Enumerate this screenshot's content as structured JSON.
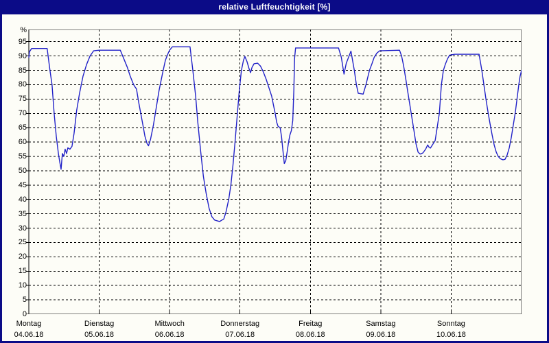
{
  "window": {
    "title": "relative Luftfeuchtigkeit [%]"
  },
  "colors": {
    "titlebar": "#0b0b87",
    "window_border": "#0b0b87",
    "background": "#fdfdf7",
    "grid": "#000000",
    "axis": "#000000",
    "text": "#000000",
    "line": "#2121c8"
  },
  "chart_data": {
    "type": "line",
    "title": "relative Luftfeuchtigkeit [%]",
    "xlabel": "",
    "ylabel": "%",
    "ylim": [
      0,
      99
    ],
    "y_tick_step": 5,
    "y_ticks": [
      95,
      90,
      85,
      80,
      75,
      70,
      65,
      60,
      55,
      50,
      45,
      40,
      35,
      30,
      25,
      20,
      15,
      10,
      5,
      0
    ],
    "y_unit_label": "%",
    "grid": "dashed",
    "legend": "none",
    "x_days": [
      {
        "label": "Montag",
        "date": "04.06.18"
      },
      {
        "label": "Dienstag",
        "date": "05.06.18"
      },
      {
        "label": "Mittwoch",
        "date": "06.06.18"
      },
      {
        "label": "Donnerstag",
        "date": "07.06.18"
      },
      {
        "label": "Freitag",
        "date": "08.06.18"
      },
      {
        "label": "Samstag",
        "date": "09.06.18"
      },
      {
        "label": "Sonntag",
        "date": "10.06.18"
      }
    ],
    "series": [
      {
        "name": "relative Luftfeuchtigkeit",
        "unit": "%",
        "points": [
          [
            0.0,
            89.5
          ],
          [
            0.01,
            91.5
          ],
          [
            0.04,
            92.6
          ],
          [
            0.26,
            92.6
          ],
          [
            0.3,
            85
          ],
          [
            0.33,
            80
          ],
          [
            0.36,
            70
          ],
          [
            0.39,
            62
          ],
          [
            0.42,
            56
          ],
          [
            0.44,
            53
          ],
          [
            0.458,
            50.5
          ],
          [
            0.477,
            56
          ],
          [
            0.497,
            55
          ],
          [
            0.516,
            57.5
          ],
          [
            0.536,
            56
          ],
          [
            0.555,
            58
          ],
          [
            0.584,
            57.5
          ],
          [
            0.613,
            58.5
          ],
          [
            0.642,
            63
          ],
          [
            0.68,
            71
          ],
          [
            0.72,
            77
          ],
          [
            0.77,
            83
          ],
          [
            0.82,
            87
          ],
          [
            0.87,
            90
          ],
          [
            0.92,
            91.8
          ],
          [
            1.0,
            92.0
          ],
          [
            1.3,
            92.0
          ],
          [
            1.35,
            89
          ],
          [
            1.4,
            86
          ],
          [
            1.44,
            83
          ],
          [
            1.48,
            80.5
          ],
          [
            1.5,
            79.5
          ],
          [
            1.53,
            78.5
          ],
          [
            1.56,
            74
          ],
          [
            1.59,
            70
          ],
          [
            1.62,
            66
          ],
          [
            1.65,
            62
          ],
          [
            1.68,
            59.5
          ],
          [
            1.7,
            58.7
          ],
          [
            1.73,
            61
          ],
          [
            1.77,
            66
          ],
          [
            1.81,
            72
          ],
          [
            1.85,
            78
          ],
          [
            1.9,
            84
          ],
          [
            1.94,
            88.5
          ],
          [
            1.98,
            91
          ],
          [
            2.0,
            92
          ],
          [
            2.04,
            93.2
          ],
          [
            2.29,
            93.2
          ],
          [
            2.33,
            85
          ],
          [
            2.37,
            76
          ],
          [
            2.4,
            67
          ],
          [
            2.44,
            57
          ],
          [
            2.48,
            48
          ],
          [
            2.52,
            42
          ],
          [
            2.56,
            37
          ],
          [
            2.6,
            34
          ],
          [
            2.64,
            32.8
          ],
          [
            2.71,
            32.3
          ],
          [
            2.77,
            33.2
          ],
          [
            2.8,
            35.5
          ],
          [
            2.84,
            40
          ],
          [
            2.87,
            45
          ],
          [
            2.9,
            52
          ],
          [
            2.93,
            60
          ],
          [
            2.96,
            69
          ],
          [
            2.99,
            78
          ],
          [
            3.02,
            85
          ],
          [
            3.05,
            88.5
          ],
          [
            3.07,
            89.8
          ],
          [
            3.1,
            88
          ],
          [
            3.13,
            85.5
          ],
          [
            3.15,
            84.2
          ],
          [
            3.17,
            86
          ],
          [
            3.2,
            87.3
          ],
          [
            3.25,
            87.5
          ],
          [
            3.29,
            86.5
          ],
          [
            3.33,
            84.5
          ],
          [
            3.37,
            82
          ],
          [
            3.41,
            79
          ],
          [
            3.45,
            76
          ],
          [
            3.475,
            73
          ],
          [
            3.5,
            70
          ],
          [
            3.52,
            67
          ],
          [
            3.54,
            65.5
          ],
          [
            3.57,
            65
          ],
          [
            3.59,
            62
          ],
          [
            3.61,
            57
          ],
          [
            3.63,
            52.5
          ],
          [
            3.65,
            53.5
          ],
          [
            3.67,
            56.5
          ],
          [
            3.69,
            60
          ],
          [
            3.71,
            62.5
          ],
          [
            3.73,
            64
          ],
          [
            3.75,
            67.5
          ],
          [
            3.765,
            78
          ],
          [
            3.775,
            89
          ],
          [
            3.79,
            92.8
          ],
          [
            4.4,
            92.8
          ],
          [
            4.44,
            89.5
          ],
          [
            4.478,
            83.7
          ],
          [
            4.51,
            87.5
          ],
          [
            4.576,
            91.7
          ],
          [
            4.624,
            85
          ],
          [
            4.653,
            80
          ],
          [
            4.68,
            77
          ],
          [
            4.75,
            76.7
          ],
          [
            4.79,
            80
          ],
          [
            4.84,
            85
          ],
          [
            4.878,
            87.5
          ],
          [
            4.906,
            89.5
          ],
          [
            4.945,
            91
          ],
          [
            4.984,
            91.8
          ],
          [
            5.267,
            92.0
          ],
          [
            5.296,
            90
          ],
          [
            5.325,
            86.5
          ],
          [
            5.355,
            82
          ],
          [
            5.384,
            77.5
          ],
          [
            5.413,
            73
          ],
          [
            5.442,
            68.5
          ],
          [
            5.471,
            64
          ],
          [
            5.5,
            59.5
          ],
          [
            5.53,
            56.5
          ],
          [
            5.56,
            55.8
          ],
          [
            5.598,
            56.2
          ],
          [
            5.637,
            57.5
          ],
          [
            5.666,
            59
          ],
          [
            5.686,
            58.2
          ],
          [
            5.705,
            57.9
          ],
          [
            5.734,
            59
          ],
          [
            5.773,
            60.5
          ],
          [
            5.832,
            70
          ],
          [
            5.861,
            80
          ],
          [
            5.89,
            85
          ],
          [
            5.919,
            87.2
          ],
          [
            5.948,
            89
          ],
          [
            5.978,
            90.3
          ],
          [
            6.05,
            90.6
          ],
          [
            6.397,
            90.6
          ],
          [
            6.436,
            85
          ],
          [
            6.465,
            80
          ],
          [
            6.494,
            75
          ],
          [
            6.523,
            70.5
          ],
          [
            6.552,
            66.5
          ],
          [
            6.582,
            62.5
          ],
          [
            6.611,
            59
          ],
          [
            6.64,
            56.5
          ],
          [
            6.669,
            55
          ],
          [
            6.698,
            54.2
          ],
          [
            6.737,
            53.8
          ],
          [
            6.766,
            54.0
          ],
          [
            6.795,
            55.5
          ],
          [
            6.825,
            58
          ],
          [
            6.854,
            61.5
          ],
          [
            6.883,
            66
          ],
          [
            6.912,
            70.5
          ],
          [
            6.941,
            76
          ],
          [
            6.961,
            80
          ],
          [
            6.98,
            83
          ],
          [
            7.0,
            85
          ]
        ]
      }
    ]
  }
}
